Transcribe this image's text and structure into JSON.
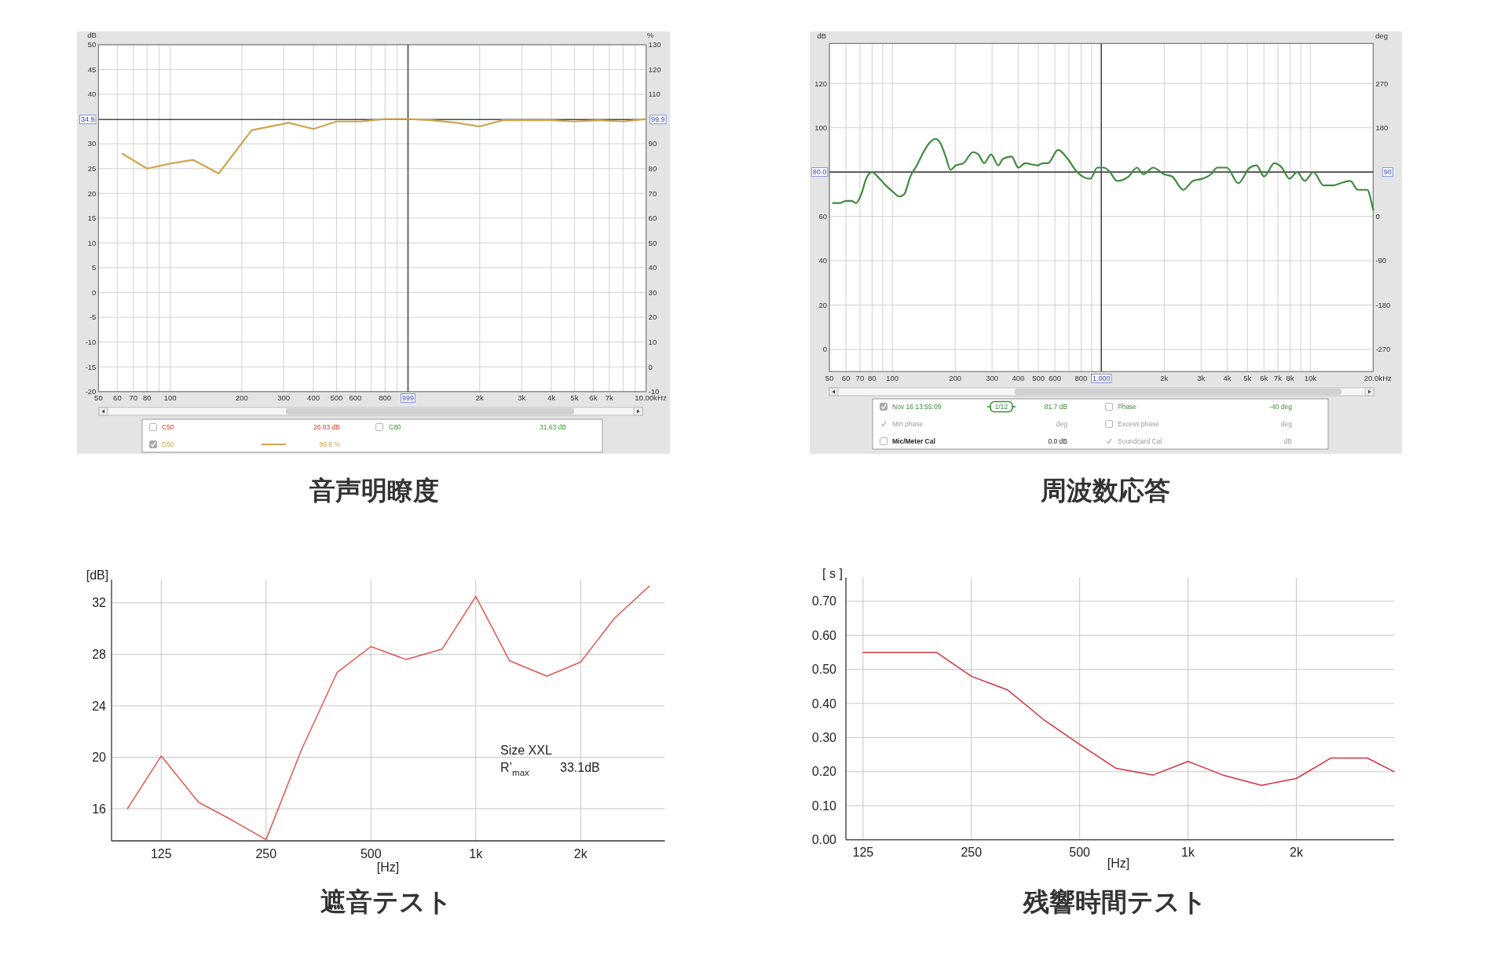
{
  "chart_data": [
    {
      "type": "line",
      "title": "音声明瞭度",
      "ylabel": "dB",
      "y2label": "%",
      "xlabel": "Hz",
      "log": "x",
      "grid": true,
      "legend": "bottom",
      "xlim": [
        50,
        10000
      ],
      "xticks": [
        50,
        60,
        70,
        80,
        {
          "value": 90,
          "label": null
        },
        100,
        200,
        300,
        400,
        500,
        600,
        {
          "value": 700,
          "label": null
        },
        800,
        {
          "value": 900,
          "label": null
        },
        {
          "value": 2000,
          "label": "2k"
        },
        {
          "value": 3000,
          "label": "3k"
        },
        {
          "value": 4000,
          "label": "4k"
        },
        {
          "value": 5000,
          "label": "5k"
        },
        {
          "value": 6000,
          "label": "6k"
        },
        {
          "value": 7000,
          "label": "7k"
        },
        {
          "value": 8000,
          "label": null
        },
        {
          "value": 9000,
          "label": null
        },
        {
          "value": 10000,
          "label": "10.00k"
        }
      ],
      "ylim": [
        -20,
        50
      ],
      "yticks": [
        -20,
        -15,
        -10,
        -5,
        0,
        5,
        10,
        15,
        20,
        25,
        30,
        40,
        45,
        50
      ],
      "y2lim": [
        -10,
        130
      ],
      "y2ticks": [
        -10,
        0,
        10,
        20,
        30,
        40,
        50,
        60,
        70,
        80,
        90,
        110,
        120,
        130
      ],
      "x": [
        63,
        80,
        100,
        125,
        160,
        220,
        315,
        400,
        500,
        630,
        800,
        1000,
        1250,
        1600,
        2000,
        2500,
        4000,
        5000,
        6300,
        8000,
        10000
      ],
      "series": [
        {
          "name": "D50",
          "color": "#cfa54f",
          "axis": "y2",
          "values": [
            86,
            80,
            82,
            83.5,
            78,
            95.5,
            98.5,
            96,
            99,
            99,
            100,
            100,
            99.5,
            98.5,
            97,
            99.5,
            99.5,
            99,
            99.5,
            99,
            100
          ]
        }
      ],
      "ref_lines": [
        {
          "axis": "x",
          "value": 999,
          "label": "999"
        },
        {
          "axis": "y",
          "value": 34.9,
          "label": "34.9"
        }
      ],
      "annotations": [
        "C50",
        "26.03 dB",
        "C80",
        "31.63 dB",
        "99.8 %",
        {
          "text": "99.9",
          "x": 10000,
          "y": 34.9
        }
      ]
    },
    {
      "type": "line",
      "title": "周波数応答",
      "ylabel": "dB",
      "y2label": "deg",
      "xlabel": "Hz",
      "log": "x",
      "grid": true,
      "legend": "bottom",
      "xlim": [
        50,
        20000
      ],
      "xticks": [
        50,
        60,
        70,
        80,
        {
          "value": 90,
          "label": null
        },
        100,
        200,
        300,
        400,
        500,
        600,
        {
          "value": 700,
          "label": null
        },
        800,
        {
          "value": 900,
          "label": null
        },
        {
          "value": 2000,
          "label": "2k"
        },
        {
          "value": 3000,
          "label": "3k"
        },
        {
          "value": 4000,
          "label": "4k"
        },
        {
          "value": 5000,
          "label": "5k"
        },
        {
          "value": 6000,
          "label": "6k"
        },
        {
          "value": 7000,
          "label": "7k"
        },
        {
          "value": 8000,
          "label": "8k"
        },
        {
          "value": 9000,
          "label": null
        },
        {
          "value": 10000,
          "label": "10k"
        },
        {
          "value": 20000,
          "label": "20.0k"
        }
      ],
      "ylim": [
        -10,
        138
      ],
      "yticks": [
        0,
        20,
        40,
        60,
        100,
        120
      ],
      "y2lim": [
        -315,
        351
      ],
      "y2ticks": [
        -270,
        -180,
        -90,
        0,
        180,
        270
      ],
      "x": [
        52,
        56,
        60,
        64,
        67,
        71,
        75,
        80,
        85,
        93,
        101,
        108,
        114,
        122,
        131,
        141,
        150,
        161,
        170,
        180,
        190,
        201,
        219,
        243,
        258,
        275,
        297,
        321,
        339,
        372,
        401,
        432,
        494,
        526,
        555,
        621,
        690,
        766,
        887,
        956,
        1030,
        1100,
        1190,
        1350,
        1480,
        1590,
        1770,
        2000,
        2180,
        2470,
        2740,
        3040,
        3350,
        3590,
        3990,
        4520,
        5130,
        5530,
        6010,
        6730,
        7310,
        7950,
        8650,
        9400,
        10350,
        11580,
        12860,
        13980,
        15520,
        16880,
        18730,
        20000
      ],
      "series": [
        {
          "name": "Nov 16 13:55:09",
          "color": "#3f8a3f",
          "values": [
            66,
            66,
            67,
            67,
            66,
            70,
            77,
            80,
            78,
            74,
            71,
            69,
            70,
            78,
            83,
            89,
            93,
            95,
            93,
            87,
            81,
            83,
            84,
            89,
            88,
            84,
            88,
            83,
            86,
            87,
            82,
            84,
            83,
            84,
            84,
            90,
            86,
            80,
            77,
            82,
            82,
            80,
            76,
            78,
            82,
            79,
            82,
            79,
            78,
            72,
            76,
            77,
            79,
            82,
            82,
            75,
            82,
            83,
            78,
            84,
            82,
            77,
            80,
            76,
            80,
            74,
            74,
            75,
            76,
            72,
            72,
            63
          ]
        }
      ],
      "ref_lines": [
        {
          "axis": "x",
          "value": 1000,
          "label": "1,000"
        },
        {
          "axis": "y",
          "value": 80,
          "label": "80.0"
        }
      ],
      "annotations": [
        "1/12",
        "81.7 dB",
        "Phase",
        "-40 deg",
        "Min phase",
        "deg",
        "Excess phase",
        "deg",
        "Mic/Meter Cal",
        "0.0 dB",
        "Soundcard Cal",
        "dB",
        {
          "text": "90",
          "x": 20000,
          "y": 80
        }
      ]
    },
    {
      "type": "line",
      "title": "遮音テスト",
      "ylabel": "[dB]",
      "xlabel": "[Hz]",
      "log": "x",
      "grid": true,
      "xlim": [
        90,
        3490
      ],
      "xticks": [
        125,
        250,
        500,
        {
          "value": 1000,
          "label": "1k"
        },
        {
          "value": 2000,
          "label": "2k"
        }
      ],
      "ylim": [
        13.5,
        33.8
      ],
      "yticks": [
        16,
        20,
        24,
        28,
        32
      ],
      "x": [
        100,
        125,
        160,
        200,
        250,
        315,
        400,
        500,
        630,
        800,
        1000,
        1250,
        1600,
        2000,
        2500,
        3150
      ],
      "series": [
        {
          "color": "#e0574f",
          "values": [
            16,
            20.1,
            16.5,
            15.1,
            13.6,
            20.5,
            26.6,
            28.6,
            27.6,
            28.4,
            32.5,
            27.5,
            26.3,
            27.4,
            30.8,
            33.3
          ]
        }
      ],
      "annotations": [
        "Size XXL",
        "R’$_{max}$",
        "33.1dB"
      ]
    },
    {
      "type": "line",
      "title": "残響時間テスト",
      "ylabel": "[ s ]",
      "xlabel": "[Hz]",
      "log": "x",
      "grid": true,
      "xlim": [
        112,
        3740
      ],
      "xticks": [
        125,
        250,
        500,
        {
          "value": 1000,
          "label": "1k"
        },
        {
          "value": 2000,
          "label": "2k"
        }
      ],
      "ylim": [
        0,
        0.77
      ],
      "yticks": [
        {
          "value": 0,
          "label": "0.00"
        },
        {
          "value": 0.1,
          "label": "0.10"
        },
        {
          "value": 0.2,
          "label": "0.20"
        },
        {
          "value": 0.3,
          "label": "0.30"
        },
        {
          "value": 0.4,
          "label": "0.40"
        },
        {
          "value": 0.5,
          "label": "0.50"
        },
        {
          "value": 0.6,
          "label": "0.60"
        },
        {
          "value": 0.7,
          "label": "0.70"
        }
      ],
      "x": [
        125,
        160,
        200,
        250,
        315,
        400,
        500,
        630,
        800,
        1000,
        1250,
        1600,
        2000,
        2500,
        3150,
        3740
      ],
      "series": [
        {
          "color": "#d5313d",
          "values": [
            0.55,
            0.55,
            0.55,
            0.48,
            0.44,
            0.35,
            0.28,
            0.21,
            0.19,
            0.23,
            0.19,
            0.16,
            0.18,
            0.24,
            0.24,
            0.2
          ]
        }
      ]
    }
  ]
}
